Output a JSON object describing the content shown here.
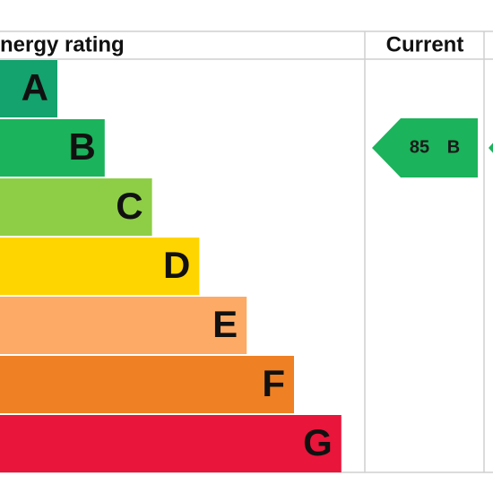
{
  "header": {
    "rating": "nergy rating",
    "current": "Current"
  },
  "bands": [
    {
      "letter": "A",
      "color": "#14a26e"
    },
    {
      "letter": "B",
      "color": "#1bb35b"
    },
    {
      "letter": "C",
      "color": "#8dce46"
    },
    {
      "letter": "D",
      "color": "#ffd500"
    },
    {
      "letter": "E",
      "color": "#fcaa65"
    },
    {
      "letter": "F",
      "color": "#ef8023"
    },
    {
      "letter": "G",
      "color": "#e9153b"
    }
  ],
  "current": {
    "score": "85",
    "band": "B",
    "color": "#1bb35b"
  }
}
